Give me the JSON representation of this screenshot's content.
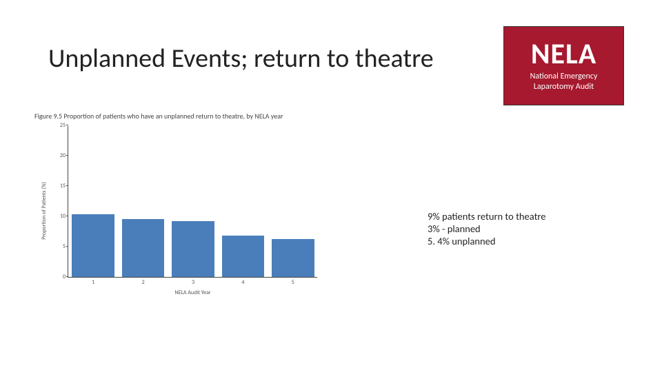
{
  "title": "Unplanned Events; return to theatre",
  "logo": {
    "main": "NELA",
    "sub": "National Emergency Laparotomy Audit",
    "bg_color": "#a6192e",
    "text_color": "#ffffff"
  },
  "figure": {
    "caption": "Figure 9.5  Proportion of patients who have an unplanned return to theatre, by NELA year",
    "chart": {
      "type": "bar",
      "categories": [
        "1",
        "2",
        "3",
        "4",
        "5"
      ],
      "values": [
        10.3,
        9.5,
        9.2,
        6.8,
        6.3
      ],
      "bar_color": "#4a7ebb",
      "bar_width": 0.85,
      "ylim": [
        0,
        25
      ],
      "yticks": [
        0,
        5,
        10,
        15,
        20,
        25
      ],
      "ylabel": "Proportion of Patients (%)",
      "xlabel": "NELA Audit Year",
      "axis_color": "#444444",
      "tick_fontsize": 8,
      "label_fontsize": 8,
      "background_color": "#ffffff"
    }
  },
  "notes": {
    "line1": "9% patients return to theatre",
    "line2": "3% - planned",
    "line3": "5. 4% unplanned"
  }
}
